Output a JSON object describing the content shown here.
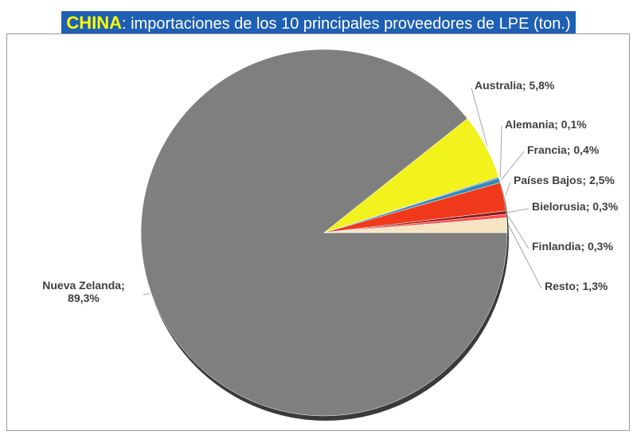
{
  "chart_data": {
    "type": "pie",
    "title": {
      "highlight": "CHINA",
      "text": ": importaciones de los 10 principales proveedores de LPE (ton.)"
    },
    "values": [
      89.3,
      5.8,
      0.1,
      0.4,
      2.5,
      0.3,
      0.3,
      1.3
    ],
    "value_labels": [
      "Nueva Zelanda; 89,3%",
      "Australia; 5,8%",
      "Alemania; 0,1%",
      "Francia; 0,4%",
      "Países Bajos; 2,5%",
      "Bielorusia; 0,3%",
      "Finlandia; 0,3%",
      "Resto; 1,3%"
    ],
    "colors": [
      "#7f7f7f",
      "#f2f21c",
      "#4472c4",
      "#2e8bb8",
      "#f0391a",
      "#8c1c1c",
      "#ff4a4a",
      "#f6e5c3"
    ]
  }
}
